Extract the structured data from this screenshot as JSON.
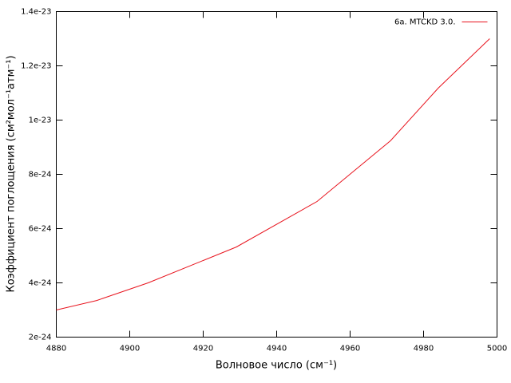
{
  "chart_data": {
    "type": "line",
    "x": [
      4880,
      4891,
      4905,
      4929,
      4951,
      4971,
      4984,
      4998
    ],
    "series": [
      {
        "name": "6а. MTCKD 3.0.",
        "color": "#e8141e",
        "values": [
          3e-24,
          3.35e-24,
          4e-24,
          5.32e-24,
          7e-24,
          9.24e-24,
          1.118e-23,
          1.3e-23
        ]
      }
    ],
    "xlabel": "Волновое число (см⁻¹)",
    "ylabel": "Коэффициент поглощения (см²мол⁻¹атм⁻¹)",
    "xlim": [
      4880,
      5000
    ],
    "xticks": [
      4880,
      4900,
      4920,
      4940,
      4960,
      4980,
      5000
    ],
    "ylim": [
      2e-24,
      1.4e-23
    ],
    "yticks": [
      {
        "value": 2e-24,
        "label": "2e-24"
      },
      {
        "value": 4e-24,
        "label": "4e-24"
      },
      {
        "value": 6e-24,
        "label": "6e-24"
      },
      {
        "value": 8e-24,
        "label": "8e-24"
      },
      {
        "value": 1e-23,
        "label": "1e-23"
      },
      {
        "value": 1.2e-23,
        "label": "1.2e-23"
      },
      {
        "value": 1.4e-23,
        "label": "1.4e-23"
      }
    ],
    "grid": false,
    "legend": "top-right"
  }
}
